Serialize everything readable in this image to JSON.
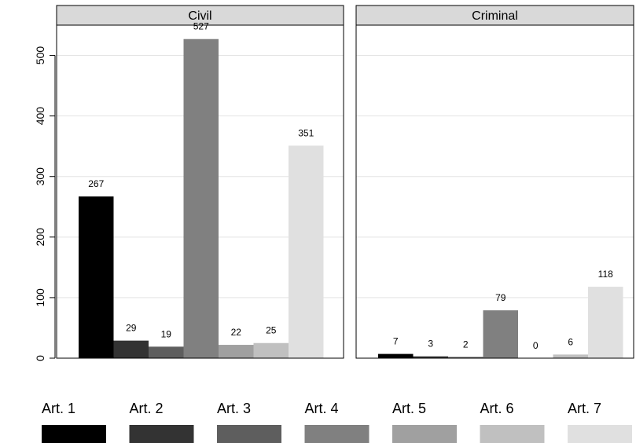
{
  "chart_data": {
    "type": "bar",
    "categories": [
      "Art. 1",
      "Art. 2",
      "Art. 3",
      "Art. 4",
      "Art. 5",
      "Art. 6",
      "Art. 7"
    ],
    "colors": [
      "#000000",
      "#333333",
      "#5e5e5e",
      "#808080",
      "#a0a0a0",
      "#c0c0c0",
      "#e0e0e0"
    ],
    "panels": [
      {
        "name": "Civil",
        "values": [
          267,
          29,
          19,
          527,
          22,
          25,
          351
        ]
      },
      {
        "name": "Criminal",
        "values": [
          7,
          3,
          2,
          79,
          0,
          6,
          118
        ]
      }
    ],
    "y_ticks": [
      0,
      100,
      200,
      300,
      400,
      500
    ],
    "ylim": [
      0,
      550
    ],
    "grid": true,
    "legend_position": "bottom"
  }
}
